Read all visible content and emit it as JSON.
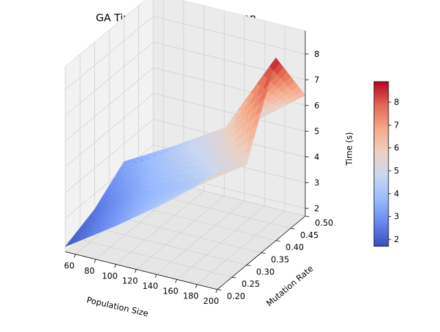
{
  "chart_data": {
    "type": "surface3d",
    "title": "GA Timing - TravelingSalesman",
    "xlabel": "Population Size",
    "ylabel": "Mutation Rate",
    "zlabel": "Time (s)",
    "xlim": [
      50,
      200
    ],
    "ylim": [
      0.2,
      0.5
    ],
    "zlim": [
      1.7,
      8.9
    ],
    "x_ticks": [
      "60",
      "80",
      "100",
      "120",
      "140",
      "160",
      "180",
      "200"
    ],
    "y_ticks": [
      "0.20",
      "0.25",
      "0.30",
      "0.35",
      "0.40",
      "0.45",
      "0.50"
    ],
    "z_ticks": [
      "2",
      "3",
      "4",
      "5",
      "6",
      "7",
      "8"
    ],
    "colorbar_ticks": [
      "2",
      "3",
      "4",
      "5",
      "6",
      "7",
      "8"
    ],
    "colormap": "coolwarm",
    "colormap_stops": [
      "#3b4cc0",
      "#6788ee",
      "#9abbff",
      "#c9d7f0",
      "#edd1c2",
      "#f7a889",
      "#e26952",
      "#b40426"
    ],
    "x": [
      50,
      100,
      150,
      200
    ],
    "y": [
      0.2,
      0.3,
      0.4,
      0.5
    ],
    "z": [
      [
        1.9,
        3.2,
        4.6,
        6.2
      ],
      [
        2.4,
        3.6,
        4.3,
        5.6
      ],
      [
        3.3,
        4.4,
        5.6,
        8.8
      ],
      [
        1.8,
        3.5,
        4.9,
        6.4
      ]
    ]
  }
}
